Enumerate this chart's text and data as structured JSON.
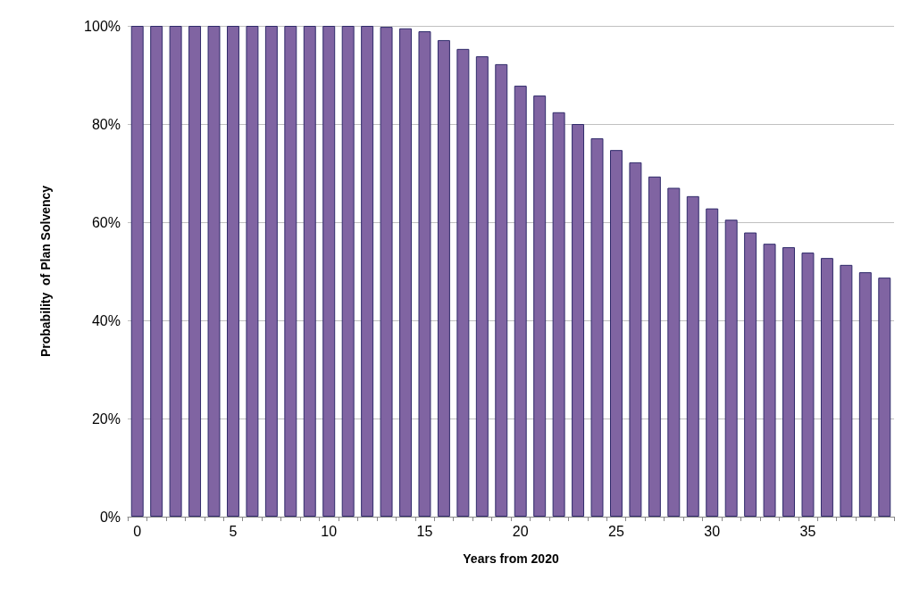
{
  "chart_data": {
    "type": "bar",
    "xlabel": "Years from 2020",
    "ylabel": "Probability  of Plan Solvency",
    "categories": [
      "0",
      null,
      null,
      null,
      null,
      "5",
      null,
      null,
      null,
      null,
      "10",
      null,
      null,
      null,
      null,
      "15",
      null,
      null,
      null,
      null,
      "20",
      null,
      null,
      null,
      null,
      "25",
      null,
      null,
      null,
      null,
      "30",
      null,
      null,
      null,
      null,
      "35",
      null,
      null,
      null,
      null
    ],
    "values": [
      100,
      100,
      100,
      100,
      100,
      100,
      100,
      100,
      100,
      100,
      100,
      100,
      100,
      99.8,
      99.5,
      98.9,
      97.1,
      95.3,
      93.8,
      92.2,
      87.8,
      85.8,
      82.4,
      80,
      77.1,
      74.7,
      72.2,
      69.3,
      67,
      65.3,
      62.8,
      60.5,
      57.9,
      55.6,
      54.9,
      53.8,
      52.7,
      51.3,
      49.8,
      48.7
    ],
    "color": "#8064a2",
    "ylim": [
      0,
      100
    ],
    "yticks": [
      {
        "value": 0,
        "label": "0%"
      },
      {
        "value": 20,
        "label": "20%"
      },
      {
        "value": 40,
        "label": "40%"
      },
      {
        "value": 60,
        "label": "60%"
      },
      {
        "value": 80,
        "label": "80%"
      },
      {
        "value": 100,
        "label": "100%"
      }
    ],
    "grid": "y"
  }
}
